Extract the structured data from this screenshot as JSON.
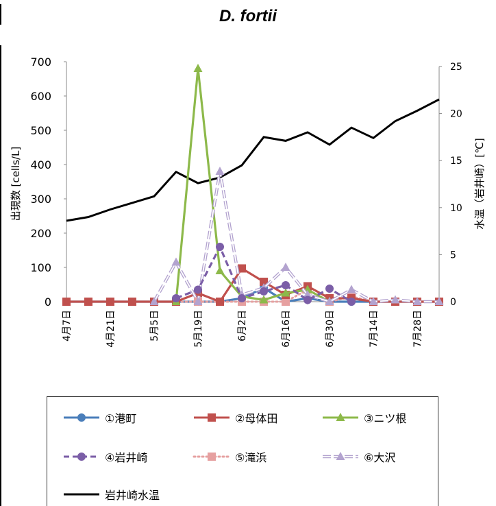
{
  "title": "D. fortii",
  "chart_data": {
    "type": "line",
    "ylabel_left": "出現数 [cells/L]",
    "ylabel_right": "水温（岩井崎）[℃]",
    "ylim_left": [
      0,
      700
    ],
    "yticks_left": [
      "0",
      "100",
      "200",
      "300",
      "400",
      "500",
      "600",
      "700"
    ],
    "ylim_right": [
      0,
      26
    ],
    "yticks_right": [
      "0",
      "5",
      "10",
      "15",
      "20",
      "25"
    ],
    "x_date_ticks": [
      "4月7日",
      "4月21日",
      "5月5日",
      "5月19日",
      "6月2日",
      "6月16日",
      "6月30日",
      "7月14日",
      "7月28日"
    ],
    "x_range": [
      "4月7日",
      "8月4日"
    ],
    "series": [
      {
        "name": "①港町",
        "color": "#4a7eba",
        "style": "solid",
        "marker": "circle",
        "axis": "left",
        "x": [
          "4月7日",
          "4月14日",
          "4月21日",
          "4月28日",
          "5月5日",
          "5月12日",
          "5月19日",
          "5月26日",
          "6月2日",
          "6月9日",
          "6月16日",
          "6月23日",
          "6月30日",
          "7月7日",
          "7月14日",
          "7月21日",
          "7月28日",
          "8月4日"
        ],
        "values": [
          0,
          0,
          0,
          0,
          0,
          0,
          0,
          0,
          10,
          40,
          0,
          10,
          0,
          0,
          0,
          0,
          0,
          0
        ]
      },
      {
        "name": "②母体田",
        "color": "#c0504d",
        "style": "solid",
        "marker": "square",
        "axis": "left",
        "x": [
          "4月7日",
          "4月14日",
          "4月21日",
          "4月28日",
          "5月5日",
          "5月12日",
          "5月19日",
          "5月26日",
          "6月2日",
          "6月9日",
          "6月16日",
          "6月23日",
          "6月30日",
          "7月7日",
          "7月14日",
          "7月21日",
          "7月28日",
          "8月4日"
        ],
        "values": [
          0,
          0,
          0,
          0,
          0,
          0,
          25,
          0,
          97,
          58,
          20,
          45,
          10,
          10,
          0,
          0,
          0,
          0
        ]
      },
      {
        "name": "③ニツ根",
        "color": "#8db94a",
        "style": "solid",
        "marker": "triangle",
        "axis": "left",
        "x": [
          "5月12日",
          "5月19日",
          "5月26日",
          "6月2日",
          "6月9日",
          "6月16日",
          "6月23日",
          "6月30日"
        ],
        "values": [
          0,
          680,
          90,
          15,
          5,
          25,
          35,
          0
        ]
      },
      {
        "name": "④岩井崎",
        "color": "#7b5ea7",
        "style": "dashed",
        "marker": "circle",
        "axis": "left",
        "x": [
          "5月12日",
          "5月19日",
          "5月26日",
          "6月2日",
          "6月9日",
          "6月16日",
          "6月23日",
          "6月30日",
          "7月7日"
        ],
        "values": [
          10,
          35,
          160,
          10,
          30,
          48,
          5,
          38,
          0
        ]
      },
      {
        "name": "⑤滝浜",
        "color": "#e6a0a0",
        "style": "dotted",
        "marker": "square",
        "axis": "left",
        "x": [
          "4月7日",
          "4月14日",
          "4月21日",
          "4月28日",
          "5月5日",
          "5月12日",
          "5月19日",
          "5月26日",
          "6月2日",
          "6月9日",
          "6月16日",
          "6月23日",
          "6月30日",
          "7月7日",
          "7月14日",
          "7月21日",
          "7月28日",
          "8月4日"
        ],
        "values": [
          0,
          0,
          0,
          0,
          0,
          0,
          0,
          0,
          0,
          0,
          0,
          35,
          0,
          15,
          0,
          0,
          0,
          0
        ]
      },
      {
        "name": "⑥大沢",
        "color": "#b3a3cf",
        "style": "double",
        "marker": "triangle",
        "axis": "left",
        "x": [
          "5月5日",
          "5月12日",
          "5月19日",
          "5月26日",
          "6月2日",
          "6月9日",
          "6月16日",
          "6月23日",
          "6月30日",
          "7月7日",
          "7月14日",
          "7月21日",
          "7月28日",
          "8月4日"
        ],
        "values": [
          0,
          115,
          0,
          380,
          20,
          40,
          100,
          20,
          0,
          35,
          0,
          5,
          0,
          0
        ]
      },
      {
        "name": "岩井崎水温",
        "color": "#000000",
        "style": "solid",
        "marker": "none",
        "axis": "right",
        "x": [
          "4月7日",
          "4月14日",
          "4月21日",
          "4月28日",
          "5月5日",
          "5月12日",
          "5月19日",
          "5月26日",
          "6月2日",
          "6月9日",
          "6月16日",
          "6月23日",
          "6月30日",
          "7月7日",
          "7月14日",
          "7月21日",
          "7月28日",
          "8月4日"
        ],
        "values": [
          8.6,
          9.0,
          9.8,
          10.5,
          11.2,
          13.8,
          12.6,
          13.2,
          14.5,
          17.5,
          17.1,
          18.0,
          16.7,
          18.5,
          17.4,
          19.2,
          20.3,
          21.5
        ]
      }
    ]
  }
}
